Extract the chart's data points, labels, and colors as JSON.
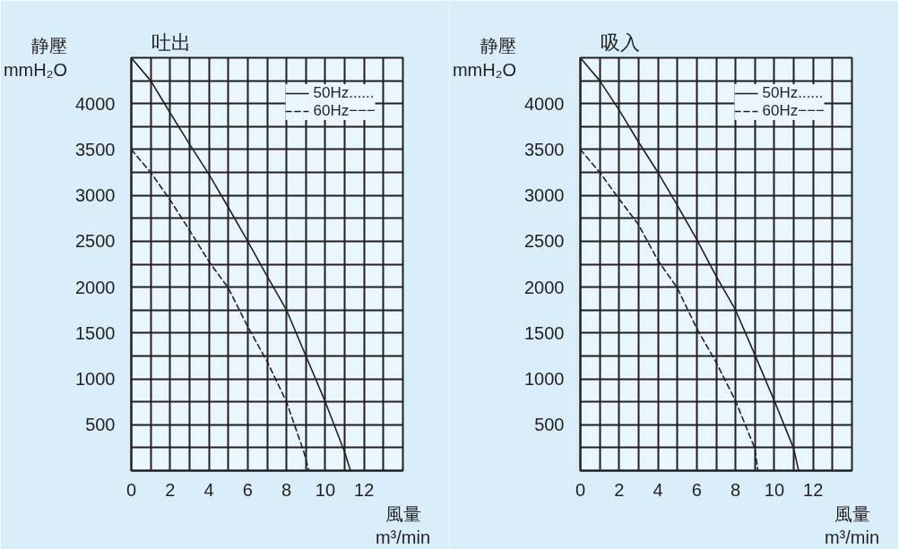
{
  "chart_data": [
    {
      "type": "line",
      "title": "吐出",
      "xlabel": "風量\nm³/min",
      "ylabel": "静壓\nmmH₂O",
      "xlim": [
        0,
        14
      ],
      "ylim": [
        0,
        4500
      ],
      "xticks": [
        0,
        {
          "value": 1,
          "label": null
        },
        2,
        {
          "value": 3,
          "label": null
        },
        4,
        {
          "value": 5,
          "label": null
        },
        6,
        {
          "value": 7,
          "label": null
        },
        8,
        {
          "value": 9,
          "label": null
        },
        10,
        {
          "value": 11,
          "label": null
        },
        12,
        {
          "value": 13,
          "label": null
        },
        {
          "value": 14,
          "label": null
        }
      ],
      "yticks": [
        {
          "value": 0,
          "label": null
        },
        {
          "value": 250,
          "label": null
        },
        500,
        {
          "value": 750,
          "label": null
        },
        1000,
        {
          "value": 1250,
          "label": null
        },
        1500,
        {
          "value": 1750,
          "label": null
        },
        2000,
        {
          "value": 2250,
          "label": null
        },
        2500,
        {
          "value": 2750,
          "label": null
        },
        3000,
        {
          "value": 3250,
          "label": null
        },
        3500,
        {
          "value": 3750,
          "label": null
        },
        4000,
        {
          "value": 4250,
          "label": null
        },
        {
          "value": 4500,
          "label": null
        }
      ],
      "grid": true,
      "legend": "top right",
      "series": [
        {
          "name": "50Hz......",
          "color": "#231f20",
          "line_style": "solid",
          "x": [
            0,
            1,
            2,
            3,
            4,
            5,
            6,
            7,
            8,
            9,
            10,
            11,
            11.3
          ],
          "values": [
            4500,
            4250,
            3900,
            3560,
            3230,
            2870,
            2500,
            2120,
            1750,
            1250,
            750,
            200,
            0
          ]
        },
        {
          "name": "60Hz−−−",
          "color": "#231f20",
          "line_style": "dashed",
          "x": [
            0,
            1,
            2,
            3,
            4,
            5,
            6,
            7,
            8,
            8.9,
            9.15
          ],
          "values": [
            3500,
            3250,
            2950,
            2620,
            2280,
            1990,
            1570,
            1190,
            750,
            200,
            0
          ]
        }
      ]
    },
    {
      "type": "line",
      "title": "吸入",
      "xlabel": "風量\nm³/min",
      "ylabel": "静壓\nmmH₂O",
      "xlim": [
        0,
        14
      ],
      "ylim": [
        0,
        4500
      ],
      "xticks": [
        0,
        {
          "value": 1,
          "label": null
        },
        2,
        {
          "value": 3,
          "label": null
        },
        4,
        {
          "value": 5,
          "label": null
        },
        6,
        {
          "value": 7,
          "label": null
        },
        8,
        {
          "value": 9,
          "label": null
        },
        10,
        {
          "value": 11,
          "label": null
        },
        12,
        {
          "value": 13,
          "label": null
        },
        {
          "value": 14,
          "label": null
        }
      ],
      "yticks": [
        {
          "value": 0,
          "label": null
        },
        {
          "value": 250,
          "label": null
        },
        500,
        {
          "value": 750,
          "label": null
        },
        1000,
        {
          "value": 1250,
          "label": null
        },
        1500,
        {
          "value": 1750,
          "label": null
        },
        2000,
        {
          "value": 2250,
          "label": null
        },
        2500,
        {
          "value": 2750,
          "label": null
        },
        3000,
        {
          "value": 3250,
          "label": null
        },
        3500,
        {
          "value": 3750,
          "label": null
        },
        4000,
        {
          "value": 4250,
          "label": null
        },
        {
          "value": 4500,
          "label": null
        }
      ],
      "grid": true,
      "legend": "top right",
      "series": [
        {
          "name": "50Hz......",
          "color": "#231f20",
          "line_style": "solid",
          "x": [
            0,
            1,
            2,
            3,
            4,
            5,
            6,
            7,
            8,
            9,
            10,
            11,
            11.25
          ],
          "values": [
            4500,
            4250,
            3930,
            3580,
            3250,
            2890,
            2520,
            2120,
            1750,
            1260,
            760,
            240,
            0
          ]
        },
        {
          "name": "60Hz−−−",
          "color": "#231f20",
          "line_style": "dashed",
          "x": [
            0,
            1,
            2,
            3,
            4,
            5,
            6,
            7,
            8,
            9,
            9.15
          ],
          "values": [
            3500,
            3250,
            2960,
            2680,
            2290,
            1990,
            1550,
            1180,
            760,
            240,
            0
          ]
        }
      ]
    }
  ]
}
